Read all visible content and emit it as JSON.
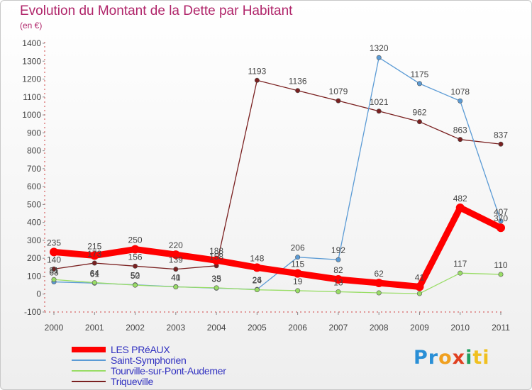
{
  "header": {
    "title": "Evolution du Montant de la Dette par Habitant",
    "unit": "(en €)"
  },
  "brand": {
    "logo_parts": [
      {
        "text": "Pr",
        "color": "#2a8fd6"
      },
      {
        "text": "o",
        "color": "#f0a020"
      },
      {
        "text": "x",
        "color": "#e04020"
      },
      {
        "text": "i",
        "color": "#20a060"
      },
      {
        "text": "ti",
        "color": "#f0c020"
      }
    ]
  },
  "chart_data": {
    "type": "line",
    "title": "Evolution du Montant de la Dette par Habitant",
    "ylabel": "(en €)",
    "ylim": [
      -100,
      1400
    ],
    "ytick_step": 100,
    "grid": false,
    "legend_position": "bottom-left",
    "x": [
      "2000",
      "2001",
      "2002",
      "2003",
      "2004",
      "2005",
      "2006",
      "2007",
      "2008",
      "2009",
      "2010",
      "2011"
    ],
    "series": [
      {
        "name": "LES PRéAUX",
        "color": "#ff0000",
        "values": [
          235,
          215,
          250,
          220,
          188,
          148,
          115,
          82,
          62,
          41,
          482,
          370
        ],
        "labels": [
          "235",
          "215",
          "250",
          "220",
          "188",
          "148",
          "115",
          "82",
          "62",
          "41",
          "482",
          "370"
        ]
      },
      {
        "name": "Saint-Symphorien",
        "color": "#5b9bd5",
        "values": [
          68,
          61,
          52,
          41,
          33,
          26,
          206,
          192,
          1320,
          1175,
          1078,
          407
        ],
        "labels": [
          "68",
          "61",
          "52",
          "41",
          "33",
          "26",
          "206",
          "192",
          "1320",
          "1175",
          "1078",
          "407"
        ]
      },
      {
        "name": "Tourville-sur-Pont-Audemer",
        "color": "#99dd66",
        "values": [
          81,
          64,
          50,
          40,
          35,
          24,
          19,
          13,
          7,
          3,
          117,
          110
        ],
        "labels": [
          "81",
          "64",
          "50",
          "40",
          "35",
          "24",
          "19",
          "13",
          "",
          "",
          "117",
          "110"
        ]
      },
      {
        "name": "Triqueville",
        "color": "#7a2020",
        "values": [
          140,
          173,
          156,
          139,
          158,
          1193,
          1136,
          1079,
          1021,
          962,
          863,
          837
        ],
        "labels": [
          "140",
          "173",
          "156",
          "139",
          "158",
          "1193",
          "1136",
          "1079",
          "1021",
          "962",
          "863",
          "837"
        ]
      }
    ]
  }
}
